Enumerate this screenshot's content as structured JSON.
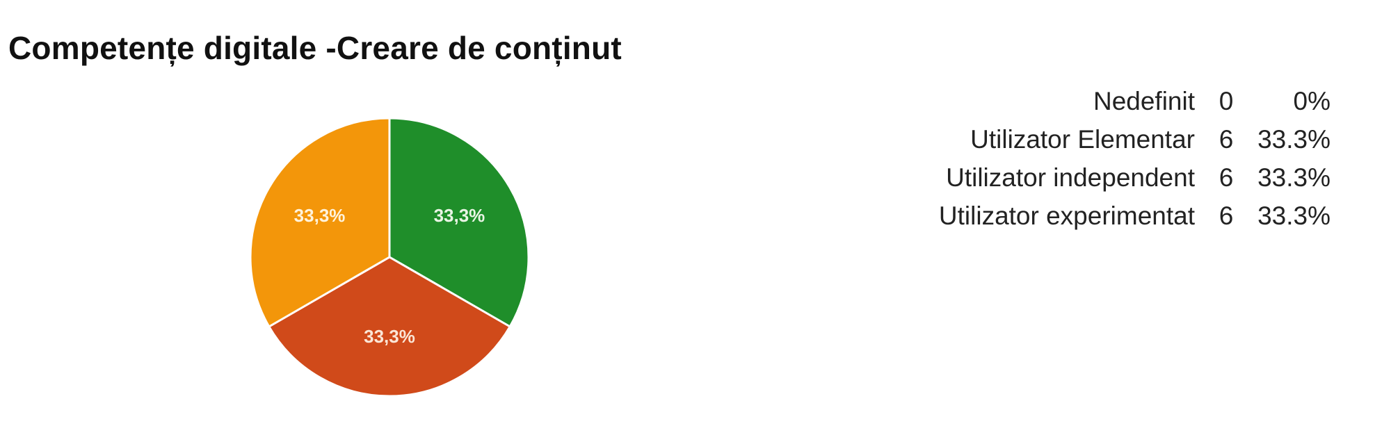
{
  "chart_data": {
    "type": "pie",
    "title": "Competențe digitale -Creare de conținut",
    "categories": [
      "Nedefinit",
      "Utilizator Elementar",
      "Utilizator independent",
      "Utilizator experimentat"
    ],
    "values": [
      0,
      6,
      6,
      6
    ],
    "percent_labels": [
      "0%",
      "33.3%",
      "33.3%",
      "33.3%"
    ],
    "slice_labels": [
      "",
      "33,3%",
      "33,3%",
      "33,3%"
    ],
    "slice_label_colors": [
      "#ffffff",
      "#e9f5e5",
      "#fbe6d6",
      "#fff3dc"
    ],
    "colors": [
      "#3366cc",
      "#1f8e2a",
      "#d04a1a",
      "#f3960a"
    ],
    "start_angle_deg": 90,
    "direction": "clockwise",
    "legend_position": "right",
    "grid": false
  }
}
